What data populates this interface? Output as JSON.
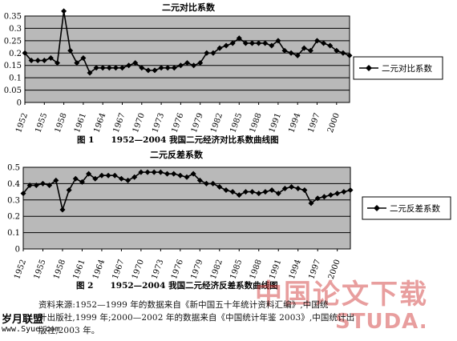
{
  "chart_data": [
    {
      "type": "line",
      "title": "二元对比系数",
      "caption": "图 1　　1952—2004 我国二元经济对比系数曲线图",
      "legend": "二元对比系数",
      "legend_position": "right",
      "grid": true,
      "ylim": [
        0,
        0.35
      ],
      "yticks": [
        "0",
        "0.05",
        "0.1",
        "0.15",
        "0.2",
        "0.25",
        "0.3",
        "0.35"
      ],
      "xticks": [
        "1952",
        "1955",
        "1958",
        "1961",
        "1964",
        "1967",
        "1970",
        "1973",
        "1976",
        "1979",
        "1982",
        "1985",
        "1988",
        "1991",
        "1994",
        "1997",
        "2000"
      ],
      "x": [
        1952,
        1953,
        1954,
        1955,
        1956,
        1957,
        1958,
        1959,
        1960,
        1961,
        1962,
        1963,
        1964,
        1965,
        1966,
        1967,
        1968,
        1969,
        1970,
        1971,
        1972,
        1973,
        1974,
        1975,
        1976,
        1977,
        1978,
        1979,
        1980,
        1981,
        1982,
        1983,
        1984,
        1985,
        1986,
        1987,
        1988,
        1989,
        1990,
        1991,
        1992,
        1993,
        1994,
        1995,
        1996,
        1997,
        1998,
        1999,
        2000,
        2001,
        2002
      ],
      "values": [
        0.2,
        0.17,
        0.17,
        0.17,
        0.18,
        0.16,
        0.37,
        0.21,
        0.16,
        0.18,
        0.12,
        0.14,
        0.14,
        0.14,
        0.14,
        0.14,
        0.15,
        0.16,
        0.14,
        0.13,
        0.13,
        0.14,
        0.14,
        0.14,
        0.15,
        0.16,
        0.15,
        0.16,
        0.2,
        0.2,
        0.22,
        0.23,
        0.24,
        0.26,
        0.24,
        0.24,
        0.24,
        0.24,
        0.23,
        0.25,
        0.21,
        0.2,
        0.19,
        0.22,
        0.21,
        0.25,
        0.24,
        0.23,
        0.21,
        0.2,
        0.19
      ]
    },
    {
      "type": "line",
      "title": "二元反差系数",
      "caption": "图 2　　1952—2004 我国二元经济反差系数曲线图",
      "legend": "二元反差系数",
      "legend_position": "right",
      "grid": true,
      "ylim": [
        0,
        0.5
      ],
      "yticks": [
        "0",
        "0.1",
        "0.2",
        "0.3",
        "0.4",
        "0.5"
      ],
      "xticks": [
        "1952",
        "1955",
        "1958",
        "1961",
        "1964",
        "1967",
        "1970",
        "1973",
        "1976",
        "1979",
        "1982",
        "1985",
        "1988",
        "1991",
        "1994",
        "1997",
        "2000"
      ],
      "x": [
        1952,
        1953,
        1954,
        1955,
        1956,
        1957,
        1958,
        1959,
        1960,
        1961,
        1962,
        1963,
        1964,
        1965,
        1966,
        1967,
        1968,
        1969,
        1970,
        1971,
        1972,
        1973,
        1974,
        1975,
        1976,
        1977,
        1978,
        1979,
        1980,
        1981,
        1982,
        1983,
        1984,
        1985,
        1986,
        1987,
        1988,
        1989,
        1990,
        1991,
        1992,
        1993,
        1994,
        1995,
        1996,
        1997,
        1998,
        1999,
        2000,
        2001,
        2002
      ],
      "values": [
        0.34,
        0.39,
        0.39,
        0.4,
        0.39,
        0.42,
        0.24,
        0.36,
        0.43,
        0.41,
        0.46,
        0.43,
        0.45,
        0.45,
        0.45,
        0.43,
        0.42,
        0.44,
        0.47,
        0.47,
        0.47,
        0.47,
        0.46,
        0.46,
        0.45,
        0.44,
        0.46,
        0.42,
        0.4,
        0.4,
        0.38,
        0.36,
        0.35,
        0.33,
        0.35,
        0.35,
        0.34,
        0.35,
        0.36,
        0.34,
        0.37,
        0.38,
        0.37,
        0.36,
        0.28,
        0.31,
        0.32,
        0.33,
        0.34,
        0.35,
        0.36
      ]
    }
  ],
  "source_note": {
    "line1": "资料来源:1952—1999 年的数据来自《新中国五十年统计资料汇编》,中国统",
    "line2": "计出版社,1999 年;2000—2002 年的数据来自《中国统计年鉴 2003》,中国统计出",
    "line3": "版社,2003 年。"
  },
  "watermarks": {
    "cn": "中国论文下载",
    "en": "STUDA.",
    "site": "岁月联盟",
    "url": "www.Syue.com"
  }
}
